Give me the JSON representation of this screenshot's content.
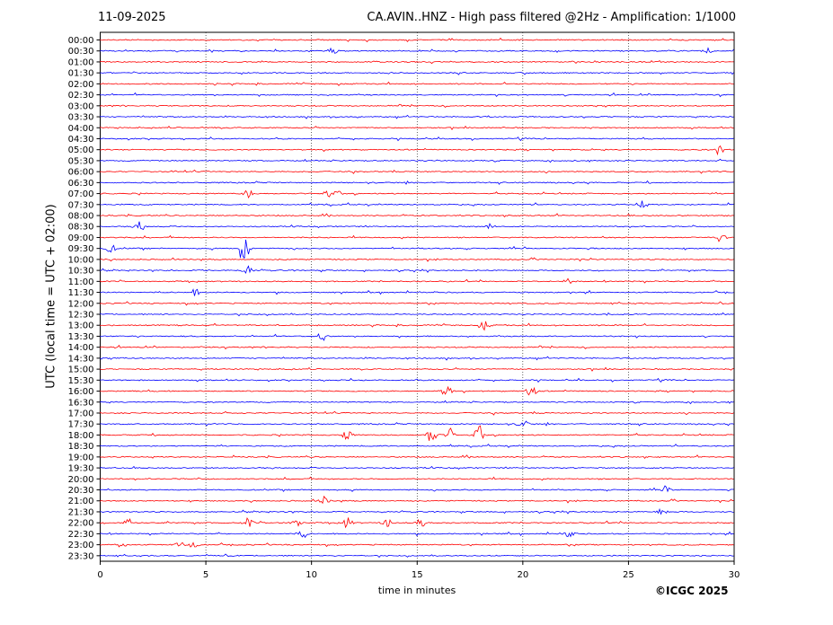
{
  "header": {
    "date": "11-09-2025",
    "title": "CA.AVIN..HNZ - High pass filtered @2Hz - Amplification: 1/1000"
  },
  "footer": {
    "credit": "©ICGC 2025"
  },
  "colors": {
    "odd_trace": "#ff0000",
    "even_trace": "#0000ff",
    "grid": "#000000"
  },
  "chart_data": {
    "type": "line",
    "title": "CA.AVIN..HNZ - High pass filtered @2Hz - Amplification: 1/1000",
    "xlabel": "time in minutes",
    "ylabel": "UTC (local time = UTC + 02:00)",
    "xlim": [
      0,
      30
    ],
    "x_ticks": [
      "0",
      "5",
      "10",
      "15",
      "20",
      "25",
      "30"
    ],
    "grid": "vertical dotted at 5-minute intervals",
    "rows": [
      "00:00",
      "00:30",
      "01:00",
      "01:30",
      "02:00",
      "02:30",
      "03:00",
      "03:30",
      "04:00",
      "04:30",
      "05:00",
      "05:30",
      "06:00",
      "06:30",
      "07:00",
      "07:30",
      "08:00",
      "08:30",
      "09:00",
      "09:30",
      "10:00",
      "10:30",
      "11:00",
      "11:30",
      "12:00",
      "12:30",
      "13:00",
      "13:30",
      "14:00",
      "14:30",
      "15:00",
      "15:30",
      "16:00",
      "16:30",
      "17:00",
      "17:30",
      "18:00",
      "18:30",
      "19:00",
      "19:30",
      "20:00",
      "20:30",
      "21:00",
      "21:30",
      "22:00",
      "22:30",
      "23:00",
      "23:30"
    ],
    "row_colors": [
      "red",
      "blue"
    ],
    "events": [
      {
        "row": "00:30",
        "minute": 11.0,
        "amplitude": 0.3
      },
      {
        "row": "00:30",
        "minute": 28.7,
        "amplitude": 0.3
      },
      {
        "row": "05:00",
        "minute": 29.3,
        "amplitude": 0.5
      },
      {
        "row": "07:00",
        "minute": 7.0,
        "amplitude": 0.4
      },
      {
        "row": "07:00",
        "minute": 10.7,
        "amplitude": 0.4
      },
      {
        "row": "07:00",
        "minute": 11.2,
        "amplitude": 0.3
      },
      {
        "row": "07:30",
        "minute": 25.6,
        "amplitude": 0.4
      },
      {
        "row": "08:30",
        "minute": 1.9,
        "amplitude": 0.5
      },
      {
        "row": "08:30",
        "minute": 18.5,
        "amplitude": 0.3
      },
      {
        "row": "09:00",
        "minute": 29.4,
        "amplitude": 0.6
      },
      {
        "row": "09:30",
        "minute": 0.5,
        "amplitude": 0.4
      },
      {
        "row": "09:30",
        "minute": 6.8,
        "amplitude": 1.8
      },
      {
        "row": "10:30",
        "minute": 7.0,
        "amplitude": 0.4
      },
      {
        "row": "11:00",
        "minute": 22.1,
        "amplitude": 0.3
      },
      {
        "row": "11:30",
        "minute": 4.5,
        "amplitude": 0.3
      },
      {
        "row": "13:00",
        "minute": 18.2,
        "amplitude": 0.4
      },
      {
        "row": "13:30",
        "minute": 10.5,
        "amplitude": 0.4
      },
      {
        "row": "16:00",
        "minute": 16.4,
        "amplitude": 0.6
      },
      {
        "row": "16:00",
        "minute": 20.4,
        "amplitude": 0.6
      },
      {
        "row": "17:30",
        "minute": 20.0,
        "amplitude": 0.6
      },
      {
        "row": "18:00",
        "minute": 11.7,
        "amplitude": 0.5
      },
      {
        "row": "18:00",
        "minute": 15.7,
        "amplitude": 0.9
      },
      {
        "row": "18:00",
        "minute": 16.6,
        "amplitude": 0.6
      },
      {
        "row": "18:00",
        "minute": 17.9,
        "amplitude": 1.0
      },
      {
        "row": "20:30",
        "minute": 26.8,
        "amplitude": 0.3
      },
      {
        "row": "21:00",
        "minute": 10.6,
        "amplitude": 0.4
      },
      {
        "row": "21:30",
        "minute": 26.6,
        "amplitude": 0.3
      },
      {
        "row": "22:00",
        "minute": 1.3,
        "amplitude": 0.5
      },
      {
        "row": "22:00",
        "minute": 7.0,
        "amplitude": 0.4
      },
      {
        "row": "22:00",
        "minute": 9.3,
        "amplitude": 0.5
      },
      {
        "row": "22:00",
        "minute": 11.7,
        "amplitude": 0.5
      },
      {
        "row": "22:00",
        "minute": 13.6,
        "amplitude": 0.4
      },
      {
        "row": "22:00",
        "minute": 15.2,
        "amplitude": 0.4
      },
      {
        "row": "22:30",
        "minute": 9.6,
        "amplitude": 0.4
      },
      {
        "row": "22:30",
        "minute": 22.2,
        "amplitude": 0.3
      },
      {
        "row": "23:00",
        "minute": 1.0,
        "amplitude": 0.4
      },
      {
        "row": "23:00",
        "minute": 3.8,
        "amplitude": 0.3
      },
      {
        "row": "23:00",
        "minute": 4.4,
        "amplitude": 0.3
      }
    ]
  }
}
